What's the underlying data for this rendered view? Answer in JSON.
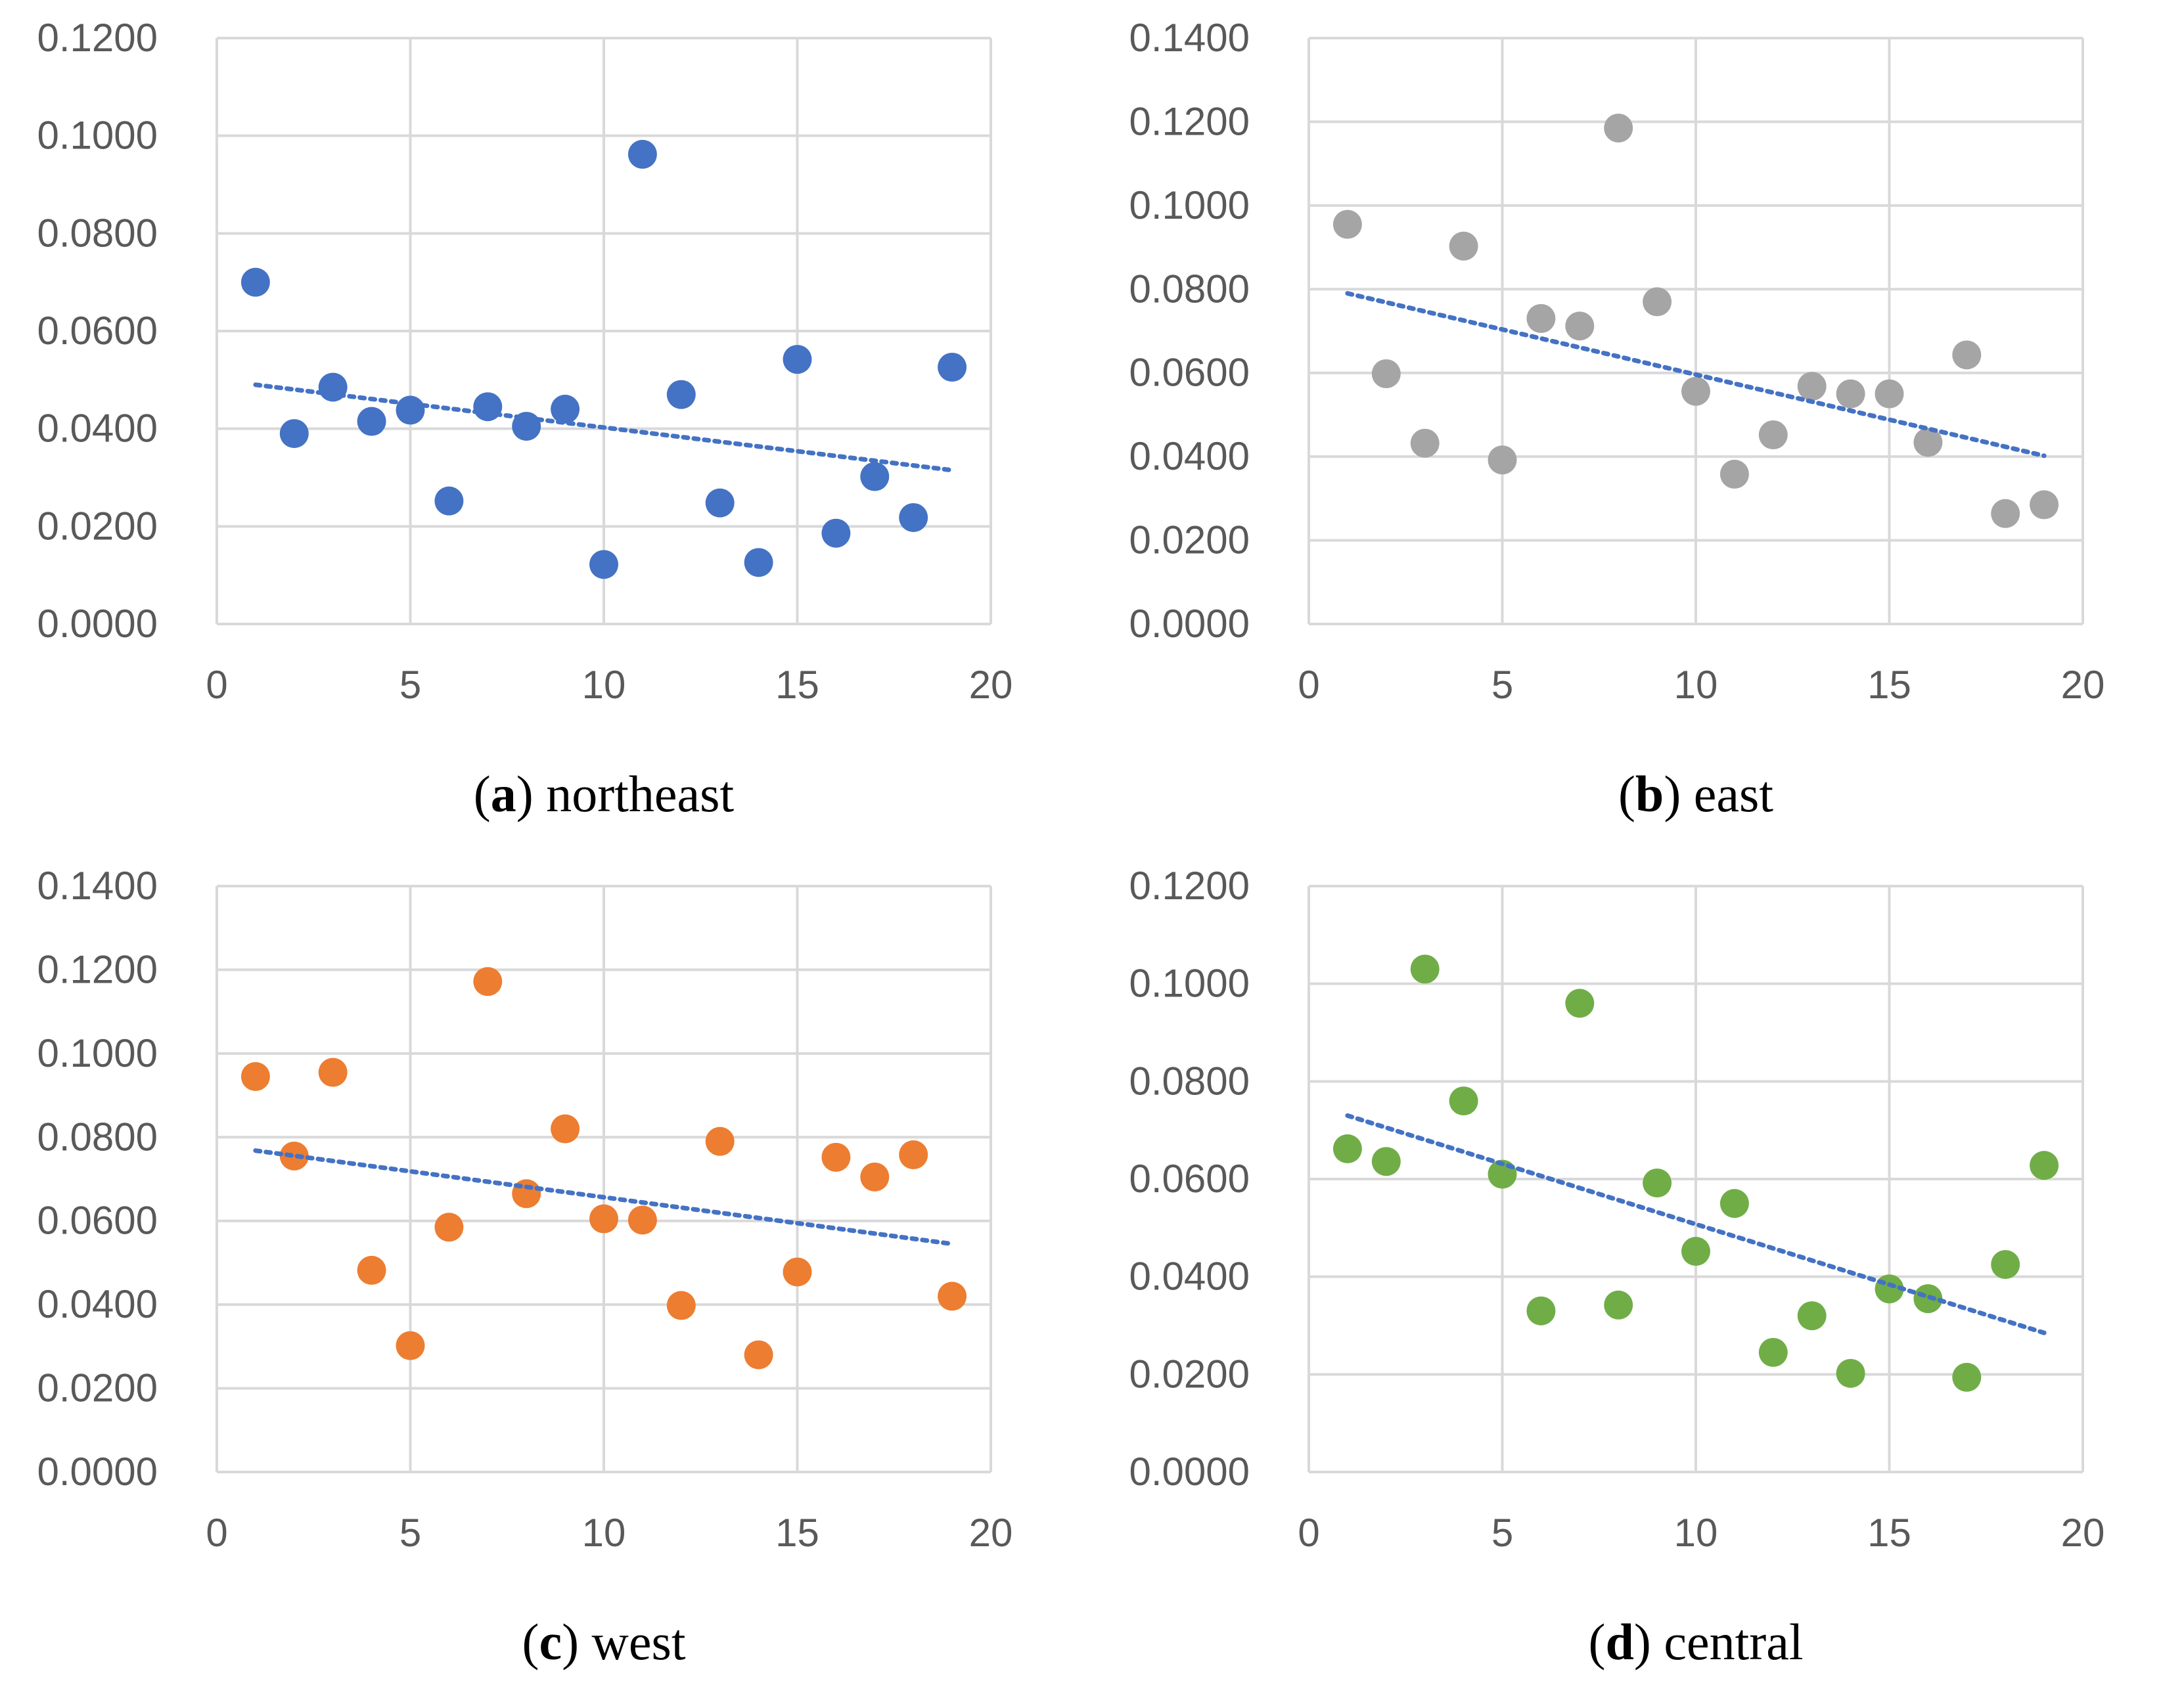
{
  "chart_data": [
    {
      "type": "scatter",
      "panel_letter": "a",
      "caption_text": "northeast",
      "color": "#4472c4",
      "trend_color": "#4472c4",
      "x": [
        1,
        2,
        3,
        4,
        5,
        6,
        7,
        8,
        9,
        10,
        11,
        12,
        13,
        14,
        15,
        16,
        17,
        18,
        19
      ],
      "y": [
        0.07,
        0.039,
        0.0485,
        0.0415,
        0.0438,
        0.0252,
        0.0445,
        0.0405,
        0.044,
        0.0122,
        0.0962,
        0.047,
        0.0248,
        0.0126,
        0.0542,
        0.0186,
        0.0302,
        0.0218,
        0.0526
      ],
      "trendline": {
        "x": [
          1,
          19
        ],
        "y": [
          0.049,
          0.0315
        ]
      },
      "xlim": [
        0,
        20
      ],
      "ylim": [
        0,
        0.12
      ],
      "xticks": [
        "0",
        "5",
        "10",
        "15",
        "20"
      ],
      "yticks": [
        "0.0000",
        "0.0200",
        "0.0400",
        "0.0600",
        "0.0800",
        "0.1000",
        "0.1200"
      ]
    },
    {
      "type": "scatter",
      "panel_letter": "b",
      "caption_text": "east",
      "color": "#a5a5a5",
      "trend_color": "#4472c4",
      "x": [
        1,
        2,
        3,
        4,
        5,
        6,
        7,
        8,
        9,
        10,
        11,
        12,
        13,
        14,
        15,
        16,
        17,
        18,
        19
      ],
      "y": [
        0.0955,
        0.0598,
        0.0432,
        0.0903,
        0.0392,
        0.073,
        0.0712,
        0.1185,
        0.077,
        0.0556,
        0.0358,
        0.0452,
        0.0568,
        0.055,
        0.055,
        0.0434,
        0.0643,
        0.0264,
        0.0285
      ],
      "trendline": {
        "x": [
          1,
          19
        ],
        "y": [
          0.079,
          0.0402
        ]
      },
      "xlim": [
        0,
        20
      ],
      "ylim": [
        0,
        0.14
      ],
      "xticks": [
        "0",
        "5",
        "10",
        "15",
        "20"
      ],
      "yticks": [
        "0.0000",
        "0.0200",
        "0.0400",
        "0.0600",
        "0.0800",
        "0.1000",
        "0.1200",
        "0.1400"
      ]
    },
    {
      "type": "scatter",
      "panel_letter": "c",
      "caption_text": "west",
      "color": "#ed7d31",
      "trend_color": "#4472c4",
      "x": [
        1,
        2,
        3,
        4,
        5,
        6,
        7,
        8,
        9,
        10,
        11,
        12,
        13,
        14,
        15,
        16,
        17,
        18,
        19
      ],
      "y": [
        0.0945,
        0.0755,
        0.0955,
        0.0482,
        0.0302,
        0.0585,
        0.1172,
        0.0665,
        0.082,
        0.0605,
        0.0602,
        0.0398,
        0.079,
        0.028,
        0.0478,
        0.0752,
        0.0705,
        0.0758,
        0.042
      ],
      "trendline": {
        "x": [
          1,
          19
        ],
        "y": [
          0.0768,
          0.0545
        ]
      },
      "xlim": [
        0,
        20
      ],
      "ylim": [
        0,
        0.14
      ],
      "xticks": [
        "0",
        "5",
        "10",
        "15",
        "20"
      ],
      "yticks": [
        "0.0000",
        "0.0200",
        "0.0400",
        "0.0600",
        "0.0800",
        "0.1000",
        "0.1200",
        "0.1400"
      ]
    },
    {
      "type": "scatter",
      "panel_letter": "d",
      "caption_text": "central",
      "color": "#70ad47",
      "trend_color": "#4472c4",
      "x": [
        1,
        2,
        3,
        4,
        5,
        6,
        7,
        8,
        9,
        10,
        11,
        12,
        13,
        14,
        15,
        16,
        17,
        18,
        19
      ],
      "y": [
        0.0662,
        0.0636,
        0.103,
        0.076,
        0.061,
        0.033,
        0.096,
        0.0342,
        0.0592,
        0.0452,
        0.055,
        0.0245,
        0.032,
        0.0202,
        0.0375,
        0.0355,
        0.0194,
        0.0425,
        0.0628
      ],
      "trendline": {
        "x": [
          1,
          19
        ],
        "y": [
          0.073,
          0.0285
        ]
      },
      "xlim": [
        0,
        20
      ],
      "ylim": [
        0,
        0.12
      ],
      "xticks": [
        "0",
        "5",
        "10",
        "15",
        "20"
      ],
      "yticks": [
        "0.0000",
        "0.0200",
        "0.0400",
        "0.0600",
        "0.0800",
        "0.1000",
        "0.1200"
      ]
    }
  ]
}
